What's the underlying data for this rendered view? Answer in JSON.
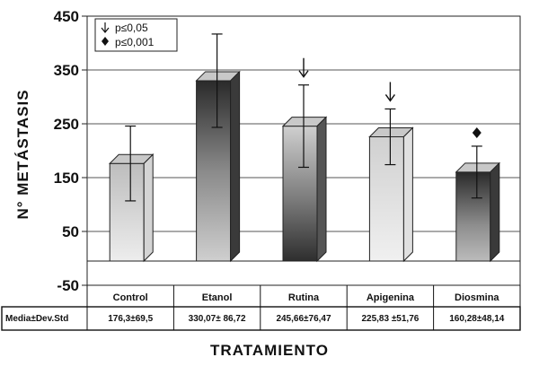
{
  "chart_data": {
    "type": "bar",
    "ylabel": "N° METÁSTASIS",
    "xlabel": "TRATAMIENTO",
    "ylim": [
      -50,
      450
    ],
    "yticks": [
      -50,
      50,
      150,
      250,
      350,
      450
    ],
    "yticklabels": [
      "-50",
      "50",
      "150",
      "250",
      "350",
      "450"
    ],
    "grid": true,
    "categories": [
      "Control",
      "Etanol",
      "Rutina",
      "Apigenina",
      "Diosmina"
    ],
    "values": [
      176.3,
      330.07,
      245.66,
      225.83,
      160.28
    ],
    "errors": [
      69.5,
      86.72,
      76.47,
      51.76,
      48.14
    ],
    "markers": [
      "",
      "",
      "arrow-down",
      "arrow-down",
      "diamond"
    ],
    "bar_colors": [
      "#d4d4d4",
      "#3a3a3a",
      "#555555",
      "#e0e0e0",
      "#3a3a3a"
    ],
    "legend": {
      "position": "top-left",
      "entries": [
        {
          "symbol": "arrow-down",
          "label": "p≤0,05"
        },
        {
          "symbol": "diamond",
          "label": "p≤0,001"
        }
      ]
    },
    "table": {
      "row_header": "Media±Dev.Std",
      "cells": [
        "176,3±69,5",
        "330,07± 86,72",
        "245,66±76,47",
        "225,83 ±51,76",
        "160,28±48,14"
      ]
    }
  }
}
